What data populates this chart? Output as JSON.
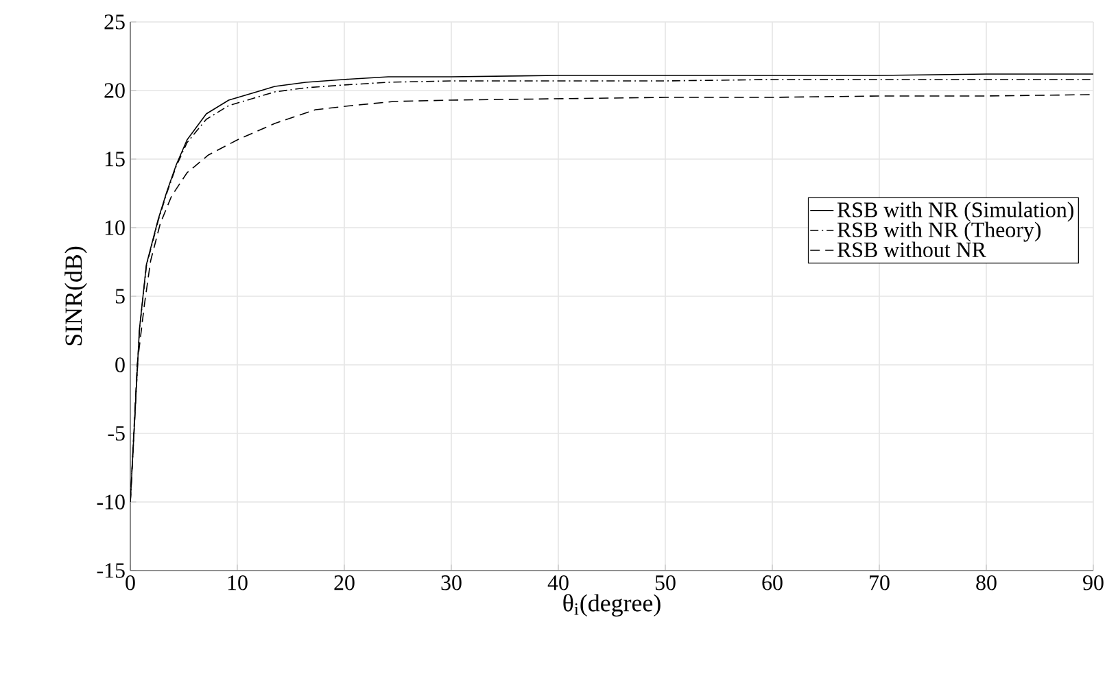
{
  "chart_data": {
    "type": "line",
    "xlabel": "θ$_{i}$(degree)",
    "ylabel": "SINR(dB)",
    "xlim": [
      0,
      90
    ],
    "ylim": [
      -15,
      25
    ],
    "xticks": [
      0,
      10,
      20,
      30,
      40,
      50,
      60,
      70,
      80,
      90
    ],
    "yticks": [
      -15,
      -10,
      -5,
      0,
      5,
      10,
      15,
      20,
      25
    ],
    "grid": true,
    "legend": "right",
    "marker": "none",
    "series": [
      {
        "name": "RSB with NR (Simulation)",
        "color": "#000000",
        "line_style": "solid",
        "x": [
          0,
          0.85,
          1.5,
          2.6,
          3.4,
          4.3,
          5.3,
          7.1,
          9.2,
          11.8,
          13.5,
          16.4,
          19.9,
          24.1,
          30,
          40,
          50,
          60,
          70,
          80,
          90
        ],
        "values": [
          -10,
          2.6,
          7.3,
          10.6,
          12.6,
          14.6,
          16.4,
          18.3,
          19.3,
          19.9,
          20.3,
          20.6,
          20.8,
          21.0,
          21.0,
          21.1,
          21.1,
          21.1,
          21.1,
          21.2,
          21.2
        ]
      },
      {
        "name": "RSB with NR (Theory)",
        "color": "#000000",
        "line_style": "dashdot",
        "x": [
          0,
          0.85,
          1.5,
          2.6,
          3.4,
          4.3,
          5.3,
          7.1,
          9.2,
          11.8,
          13.5,
          16.4,
          19.9,
          24.1,
          30,
          40,
          50,
          60,
          70,
          80,
          90
        ],
        "values": [
          -10,
          2.5,
          7.2,
          10.5,
          12.5,
          14.5,
          16.2,
          17.9,
          18.9,
          19.5,
          19.9,
          20.2,
          20.4,
          20.6,
          20.7,
          20.7,
          20.7,
          20.8,
          20.8,
          20.8,
          20.8
        ]
      },
      {
        "name": "RSB without NR",
        "color": "#000000",
        "line_style": "dashed",
        "x": [
          0,
          0.64,
          1.3,
          1.9,
          2.8,
          3.85,
          5.3,
          7.3,
          10,
          13.5,
          17.3,
          20.7,
          24.6,
          30,
          40,
          50,
          60,
          70,
          80,
          90
        ],
        "values": [
          -10,
          0,
          4.3,
          7.6,
          10.3,
          12.3,
          14.0,
          15.3,
          16.4,
          17.6,
          18.6,
          18.9,
          19.2,
          19.3,
          19.4,
          19.5,
          19.5,
          19.6,
          19.6,
          19.7
        ]
      }
    ]
  }
}
